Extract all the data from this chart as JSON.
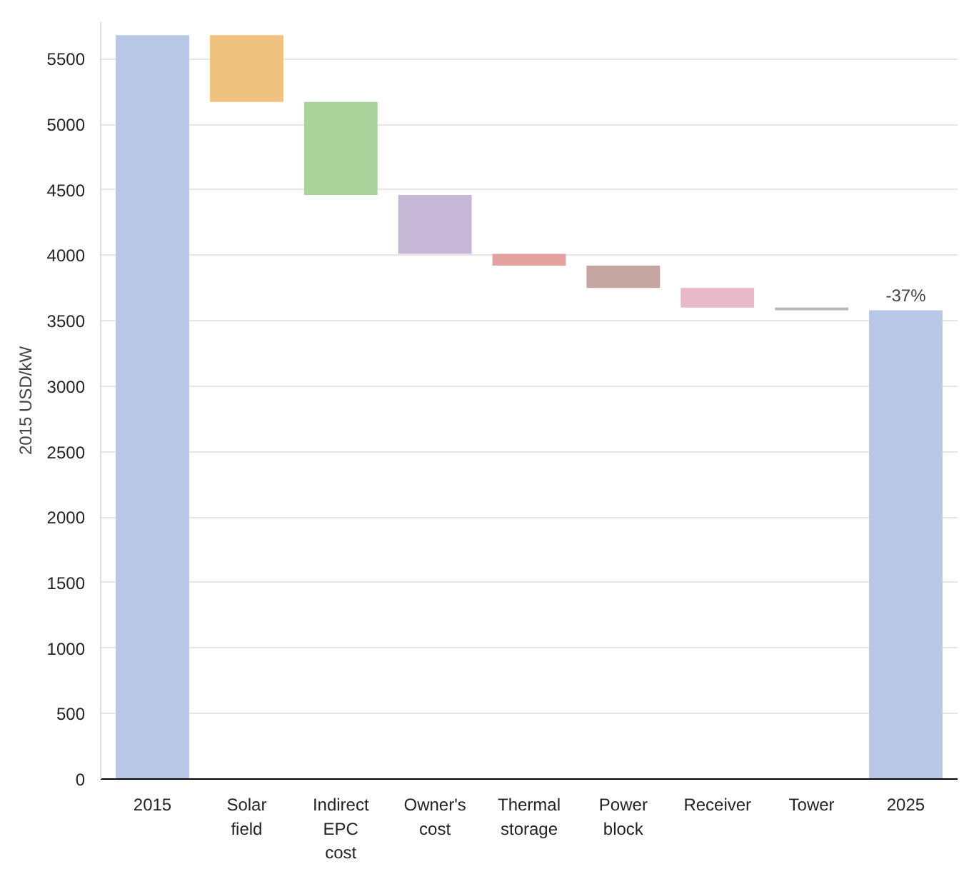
{
  "chart_data": {
    "type": "bar",
    "ylabel": "2015 USD/kW",
    "categories": [
      "2015",
      "Solar field",
      "Indirect EPC cost",
      "Owner's cost",
      "Thermal storage",
      "Power block",
      "Receiver",
      "Tower",
      "2025"
    ],
    "values": [
      5680,
      510,
      710,
      450,
      90,
      170,
      150,
      20,
      3580
    ],
    "base": [
      0,
      5170,
      4460,
      4010,
      3920,
      3750,
      3600,
      3580,
      0
    ],
    "colors": [
      "#b9c8e6",
      "#f0c27f",
      "#a9d19a",
      "#c7b8d8",
      "#e3a2a0",
      "#c4a59f",
      "#eab8cb",
      "#b8b8b8",
      "#b9c8e6"
    ],
    "ylim": [
      0,
      5780
    ],
    "yticks": [
      0,
      500,
      1000,
      1500,
      2000,
      2500,
      3000,
      3500,
      4000,
      4500,
      5000,
      5500
    ],
    "grid": "y",
    "annotations": [
      {
        "text": "-37%",
        "x": "2025",
        "y": 3580
      }
    ]
  }
}
